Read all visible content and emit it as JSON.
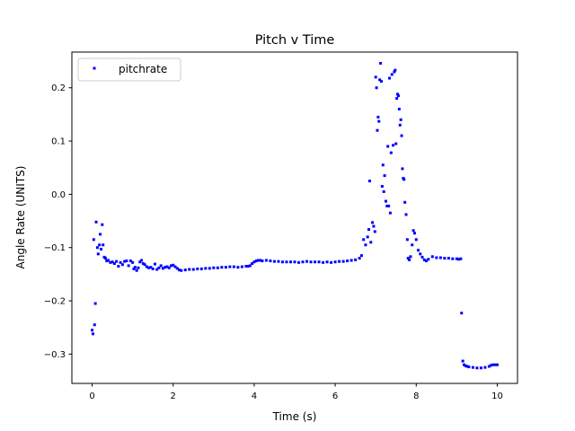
{
  "chart_data": {
    "type": "scatter",
    "title": "Pitch v Time",
    "xlabel": "Time (s)",
    "ylabel": "Angle Rate (UNITS)",
    "xlim": [
      -0.5,
      10.5
    ],
    "ylim": [
      -0.355,
      0.267
    ],
    "xticks": [
      0,
      2,
      4,
      6,
      8,
      10
    ],
    "xtick_labels": [
      "0",
      "2",
      "4",
      "6",
      "8",
      "10"
    ],
    "yticks": [
      -0.3,
      -0.2,
      -0.1,
      0.0,
      0.1,
      0.2
    ],
    "ytick_labels": [
      "−0.3",
      "−0.2",
      "−0.1",
      "0.0",
      "0.1",
      "0.2"
    ],
    "grid": false,
    "legend_position": "upper-left",
    "marker_color": "#0000ff",
    "series": [
      {
        "name": "pitchrate",
        "points": [
          [
            0.0,
            -0.255
          ],
          [
            0.02,
            -0.262
          ],
          [
            0.04,
            -0.085
          ],
          [
            0.06,
            -0.245
          ],
          [
            0.08,
            -0.205
          ],
          [
            0.1,
            -0.052
          ],
          [
            0.13,
            -0.1
          ],
          [
            0.15,
            -0.112
          ],
          [
            0.18,
            -0.095
          ],
          [
            0.2,
            -0.075
          ],
          [
            0.22,
            -0.103
          ],
          [
            0.25,
            -0.057
          ],
          [
            0.27,
            -0.095
          ],
          [
            0.3,
            -0.118
          ],
          [
            0.33,
            -0.12
          ],
          [
            0.36,
            -0.125
          ],
          [
            0.4,
            -0.124
          ],
          [
            0.45,
            -0.128
          ],
          [
            0.5,
            -0.127
          ],
          [
            0.55,
            -0.13
          ],
          [
            0.6,
            -0.126
          ],
          [
            0.65,
            -0.135
          ],
          [
            0.7,
            -0.128
          ],
          [
            0.75,
            -0.132
          ],
          [
            0.8,
            -0.126
          ],
          [
            0.85,
            -0.125
          ],
          [
            0.9,
            -0.134
          ],
          [
            0.95,
            -0.125
          ],
          [
            1.0,
            -0.128
          ],
          [
            1.03,
            -0.14
          ],
          [
            1.06,
            -0.137
          ],
          [
            1.1,
            -0.143
          ],
          [
            1.14,
            -0.138
          ],
          [
            1.18,
            -0.127
          ],
          [
            1.22,
            -0.124
          ],
          [
            1.26,
            -0.13
          ],
          [
            1.3,
            -0.132
          ],
          [
            1.35,
            -0.136
          ],
          [
            1.4,
            -0.138
          ],
          [
            1.45,
            -0.137
          ],
          [
            1.5,
            -0.14
          ],
          [
            1.55,
            -0.131
          ],
          [
            1.6,
            -0.141
          ],
          [
            1.65,
            -0.138
          ],
          [
            1.7,
            -0.134
          ],
          [
            1.75,
            -0.139
          ],
          [
            1.8,
            -0.137
          ],
          [
            1.85,
            -0.136
          ],
          [
            1.9,
            -0.138
          ],
          [
            1.95,
            -0.134
          ],
          [
            2.0,
            -0.133
          ],
          [
            2.05,
            -0.136
          ],
          [
            2.1,
            -0.139
          ],
          [
            2.15,
            -0.142
          ],
          [
            2.2,
            -0.143
          ],
          [
            2.3,
            -0.142
          ],
          [
            2.4,
            -0.141
          ],
          [
            2.5,
            -0.141
          ],
          [
            2.6,
            -0.14
          ],
          [
            2.7,
            -0.14
          ],
          [
            2.8,
            -0.139
          ],
          [
            2.9,
            -0.139
          ],
          [
            3.0,
            -0.138
          ],
          [
            3.1,
            -0.138
          ],
          [
            3.2,
            -0.137
          ],
          [
            3.3,
            -0.137
          ],
          [
            3.4,
            -0.136
          ],
          [
            3.5,
            -0.136
          ],
          [
            3.6,
            -0.137
          ],
          [
            3.7,
            -0.136
          ],
          [
            3.8,
            -0.135
          ],
          [
            3.85,
            -0.135
          ],
          [
            3.9,
            -0.134
          ],
          [
            3.95,
            -0.13
          ],
          [
            4.0,
            -0.127
          ],
          [
            4.05,
            -0.125
          ],
          [
            4.1,
            -0.124
          ],
          [
            4.15,
            -0.124
          ],
          [
            4.2,
            -0.125
          ],
          [
            4.3,
            -0.124
          ],
          [
            4.4,
            -0.125
          ],
          [
            4.5,
            -0.126
          ],
          [
            4.6,
            -0.126
          ],
          [
            4.7,
            -0.127
          ],
          [
            4.8,
            -0.127
          ],
          [
            4.9,
            -0.127
          ],
          [
            5.0,
            -0.127
          ],
          [
            5.1,
            -0.128
          ],
          [
            5.2,
            -0.127
          ],
          [
            5.3,
            -0.126
          ],
          [
            5.4,
            -0.127
          ],
          [
            5.5,
            -0.127
          ],
          [
            5.6,
            -0.127
          ],
          [
            5.7,
            -0.128
          ],
          [
            5.8,
            -0.127
          ],
          [
            5.9,
            -0.128
          ],
          [
            6.0,
            -0.127
          ],
          [
            6.1,
            -0.126
          ],
          [
            6.2,
            -0.126
          ],
          [
            6.3,
            -0.125
          ],
          [
            6.4,
            -0.124
          ],
          [
            6.5,
            -0.123
          ],
          [
            6.6,
            -0.12
          ],
          [
            6.65,
            -0.115
          ],
          [
            6.7,
            -0.085
          ],
          [
            6.75,
            -0.095
          ],
          [
            6.8,
            -0.08
          ],
          [
            6.83,
            -0.066
          ],
          [
            6.85,
            0.025
          ],
          [
            6.88,
            -0.09
          ],
          [
            6.92,
            -0.053
          ],
          [
            6.95,
            -0.06
          ],
          [
            6.98,
            -0.07
          ],
          [
            7.0,
            0.22
          ],
          [
            7.02,
            0.2
          ],
          [
            7.04,
            0.12
          ],
          [
            7.06,
            0.145
          ],
          [
            7.08,
            0.137
          ],
          [
            7.1,
            0.215
          ],
          [
            7.12,
            0.246
          ],
          [
            7.14,
            0.212
          ],
          [
            7.16,
            0.015
          ],
          [
            7.18,
            0.055
          ],
          [
            7.2,
            0.005
          ],
          [
            7.22,
            0.035
          ],
          [
            7.25,
            -0.013
          ],
          [
            7.28,
            -0.022
          ],
          [
            7.3,
            0.09
          ],
          [
            7.32,
            -0.022
          ],
          [
            7.34,
            0.218
          ],
          [
            7.36,
            -0.035
          ],
          [
            7.38,
            0.078
          ],
          [
            7.4,
            0.225
          ],
          [
            7.43,
            0.092
          ],
          [
            7.46,
            0.23
          ],
          [
            7.48,
            0.233
          ],
          [
            7.5,
            0.095
          ],
          [
            7.52,
            0.18
          ],
          [
            7.54,
            0.188
          ],
          [
            7.56,
            0.185
          ],
          [
            7.58,
            0.16
          ],
          [
            7.6,
            0.13
          ],
          [
            7.62,
            0.14
          ],
          [
            7.64,
            0.11
          ],
          [
            7.66,
            0.048
          ],
          [
            7.68,
            0.03
          ],
          [
            7.7,
            0.028
          ],
          [
            7.72,
            -0.015
          ],
          [
            7.75,
            -0.038
          ],
          [
            7.78,
            -0.085
          ],
          [
            7.8,
            -0.12
          ],
          [
            7.83,
            -0.123
          ],
          [
            7.86,
            -0.117
          ],
          [
            7.9,
            -0.095
          ],
          [
            7.93,
            -0.068
          ],
          [
            7.96,
            -0.073
          ],
          [
            8.0,
            -0.085
          ],
          [
            8.05,
            -0.105
          ],
          [
            8.1,
            -0.112
          ],
          [
            8.15,
            -0.118
          ],
          [
            8.2,
            -0.123
          ],
          [
            8.25,
            -0.125
          ],
          [
            8.3,
            -0.122
          ],
          [
            8.4,
            -0.117
          ],
          [
            8.5,
            -0.119
          ],
          [
            8.6,
            -0.119
          ],
          [
            8.7,
            -0.12
          ],
          [
            8.8,
            -0.12
          ],
          [
            8.9,
            -0.121
          ],
          [
            9.0,
            -0.121
          ],
          [
            9.05,
            -0.122
          ],
          [
            9.1,
            -0.121
          ],
          [
            9.12,
            -0.223
          ],
          [
            9.15,
            -0.313
          ],
          [
            9.18,
            -0.32
          ],
          [
            9.22,
            -0.322
          ],
          [
            9.26,
            -0.323
          ],
          [
            9.3,
            -0.324
          ],
          [
            9.4,
            -0.325
          ],
          [
            9.5,
            -0.326
          ],
          [
            9.6,
            -0.326
          ],
          [
            9.7,
            -0.325
          ],
          [
            9.8,
            -0.323
          ],
          [
            9.85,
            -0.321
          ],
          [
            9.9,
            -0.32
          ],
          [
            9.95,
            -0.32
          ],
          [
            10.0,
            -0.32
          ]
        ]
      }
    ]
  }
}
